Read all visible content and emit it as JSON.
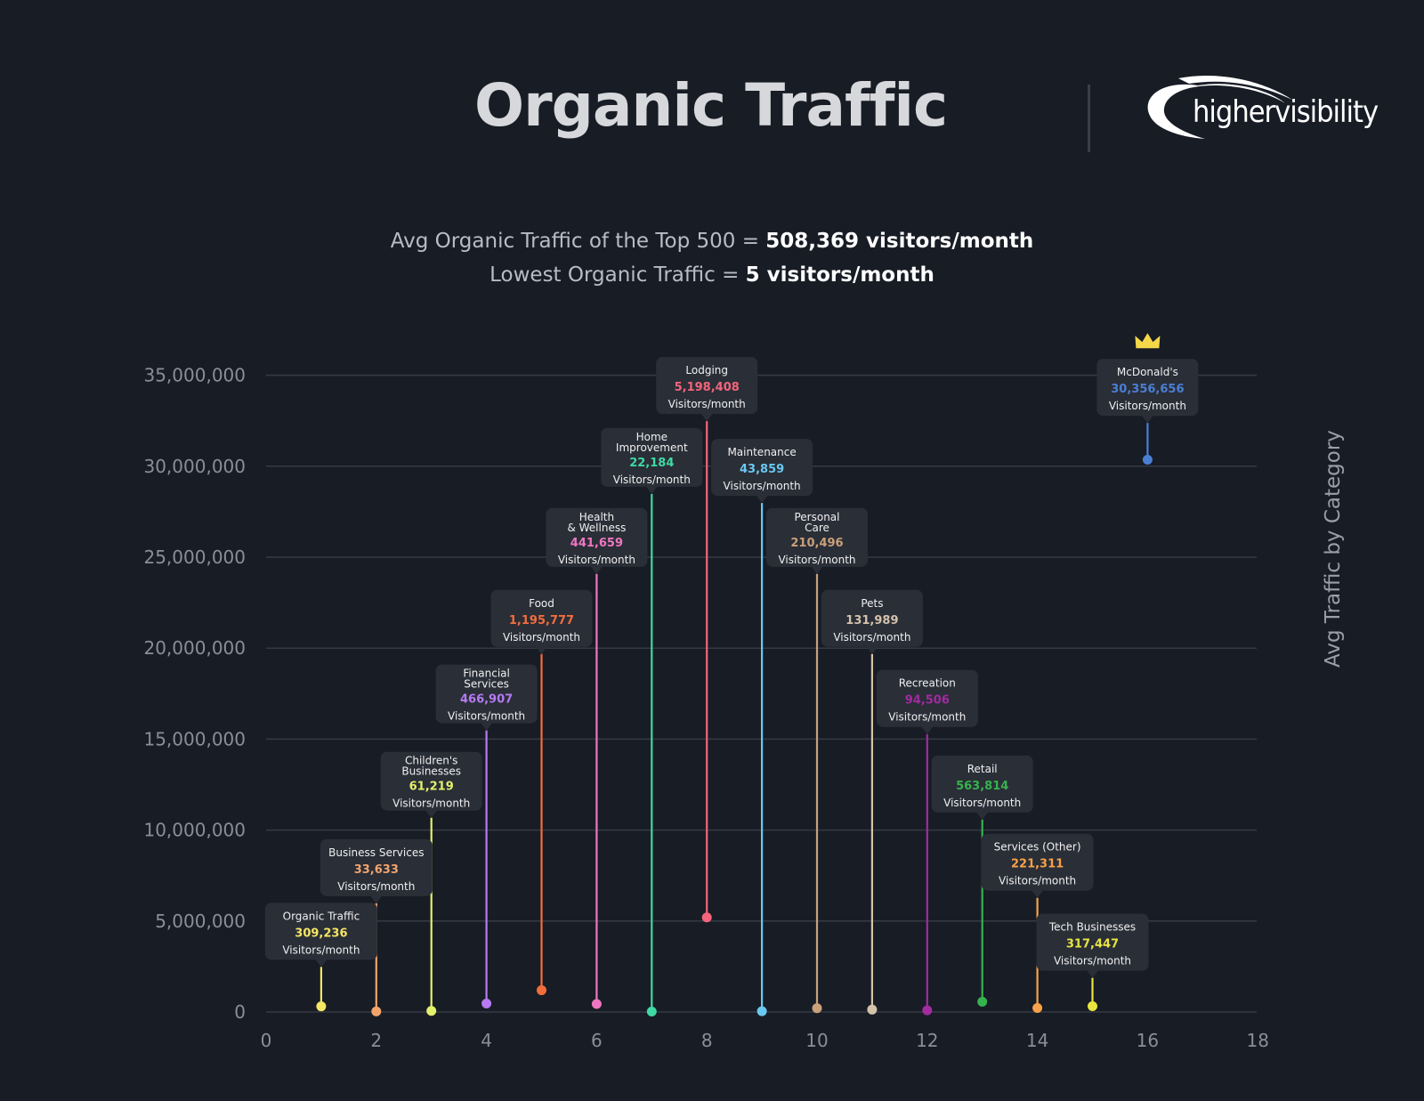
{
  "header": {
    "title": "Organic Traffic",
    "logo_text": "highervisibility"
  },
  "subtitle": {
    "line1_prefix": "Avg Organic Traffic of the Top 500 = ",
    "line1_value": "508,369 visitors/month",
    "line2_prefix": "Lowest Organic Traffic = ",
    "line2_value": "5 visitors/month"
  },
  "chart_data": {
    "type": "scatter",
    "title": "Organic Traffic",
    "ylabel": "Avg Traffic by Category",
    "xlabel": "",
    "xlim": [
      0,
      18
    ],
    "ylim": [
      0,
      35000000
    ],
    "x_ticks": [
      "0",
      "2",
      "4",
      "6",
      "8",
      "10",
      "12",
      "14",
      "16",
      "18"
    ],
    "y_ticks": [
      "0",
      "5,000,000",
      "10,000,000",
      "15,000,000",
      "20,000,000",
      "25,000,000",
      "30,000,000",
      "35,000,000"
    ],
    "grid": true,
    "unit_label": "Visitors/month",
    "points": [
      {
        "x": 1,
        "y": 309236,
        "name": [
          "Organic Traffic"
        ],
        "value_label": "309,236",
        "color": "#f5e663",
        "label_top": 6000000
      },
      {
        "x": 2,
        "y": 33633,
        "name": [
          "Business Services"
        ],
        "value_label": "33,633",
        "color": "#f2a46b",
        "label_top": 9500000
      },
      {
        "x": 3,
        "y": 61219,
        "name": [
          "Children's",
          "Businesses"
        ],
        "value_label": "61,219",
        "color": "#e3f06b",
        "label_top": 14300000
      },
      {
        "x": 4,
        "y": 466907,
        "name": [
          "Financial",
          "Services"
        ],
        "value_label": "466,907",
        "color": "#b57af2",
        "label_top": 19100000
      },
      {
        "x": 5,
        "y": 1195777,
        "name": [
          "Food"
        ],
        "value_label": "1,195,777",
        "color": "#f26d3d",
        "label_top": 23200000
      },
      {
        "x": 6,
        "y": 441659,
        "name": [
          "Health",
          "& Wellness"
        ],
        "value_label": "441,659",
        "color": "#ef77c2",
        "label_top": 27700000
      },
      {
        "x": 7,
        "y": 22184,
        "name": [
          "Home",
          "Improvement"
        ],
        "value_label": "22,184",
        "color": "#3fd9a3",
        "label_top": 32100000
      },
      {
        "x": 8,
        "y": 5198408,
        "name": [
          "Lodging"
        ],
        "value_label": "5,198,408",
        "color": "#f3657c",
        "label_top": 36000000
      },
      {
        "x": 9,
        "y": 43859,
        "name": [
          "Maintenance"
        ],
        "value_label": "43,859",
        "color": "#69c8f0",
        "label_top": 31500000
      },
      {
        "x": 10,
        "y": 210496,
        "name": [
          "Personal",
          "Care"
        ],
        "value_label": "210,496",
        "color": "#c9a07a",
        "label_top": 27700000
      },
      {
        "x": 11,
        "y": 131989,
        "name": [
          "Pets"
        ],
        "value_label": "131,989",
        "color": "#d4c2ab",
        "label_top": 23200000
      },
      {
        "x": 12,
        "y": 94506,
        "name": [
          "Recreation"
        ],
        "value_label": "94,506",
        "color": "#a12b9f",
        "label_top": 18800000
      },
      {
        "x": 13,
        "y": 563814,
        "name": [
          "Retail"
        ],
        "value_label": "563,814",
        "color": "#36b24f",
        "label_top": 14100000
      },
      {
        "x": 14,
        "y": 221311,
        "name": [
          "Services (Other)"
        ],
        "value_label": "221,311",
        "color": "#f7a24a",
        "label_top": 9800000
      },
      {
        "x": 15,
        "y": 317447,
        "name": [
          "Tech Businesses"
        ],
        "value_label": "317,447",
        "color": "#e8e53f",
        "label_top": 5400000
      },
      {
        "x": 16,
        "y": 30356656,
        "name": [
          "McDonald's"
        ],
        "value_label": "30,356,656",
        "color": "#4a7fd4",
        "label_top": 35900000,
        "crown": true
      }
    ]
  },
  "colors": {
    "background": "#181c25",
    "label_box": "#2a2e37",
    "grid": "#353a45",
    "crown": "#f5d74a"
  }
}
